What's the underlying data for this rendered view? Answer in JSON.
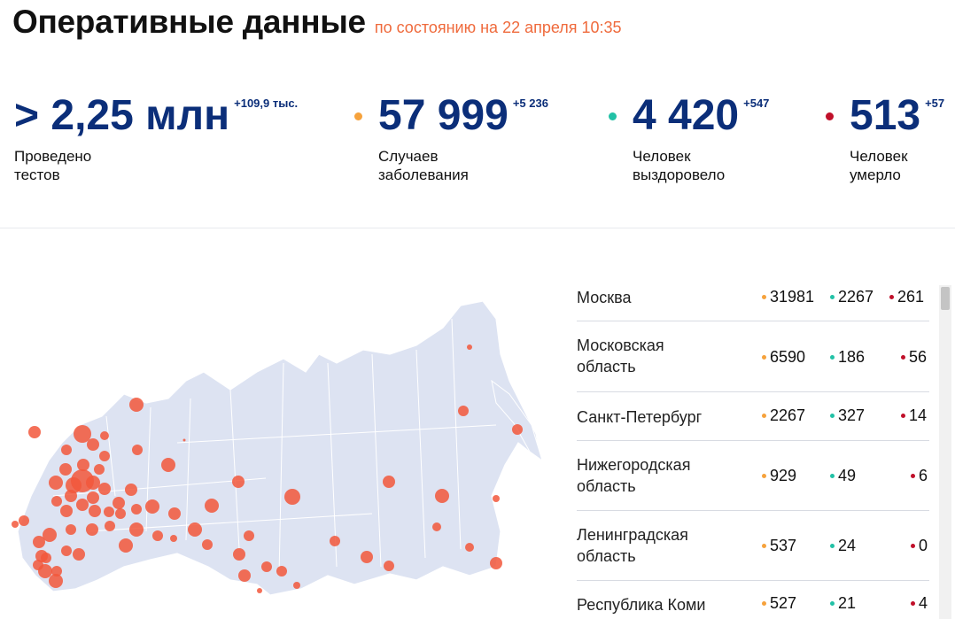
{
  "header": {
    "title": "Оперативные данные",
    "as_of": "по состоянию на 22 апреля 10:35"
  },
  "stats": [
    {
      "value": "> 2,25 млн",
      "delta": "+109,9 тыс.",
      "label_line1": "Проведено",
      "label_line2": "тестов",
      "dot_color": ""
    },
    {
      "value": "57 999",
      "delta": "+5 236",
      "label_line1": "Случаев",
      "label_line2": "заболевания",
      "dot_color": "#f6a23c"
    },
    {
      "value": "4 420",
      "delta": "+547",
      "label_line1": "Человек",
      "label_line2": "выздоровело",
      "dot_color": "#22c1a6"
    },
    {
      "value": "513",
      "delta": "+57",
      "label_line1": "Человек",
      "label_line2": "умерло",
      "dot_color": "#c0102a"
    }
  ],
  "colors": {
    "title_blue": "#0b2e79",
    "accent_orange": "#ef6a3c",
    "cases": "#f6a23c",
    "recovered": "#22c1a6",
    "deaths": "#c0102a",
    "map_land": "#dde3f2",
    "map_bubble": "#f2573b"
  },
  "regions": [
    {
      "name": "Москва",
      "cases": "31981",
      "recovered": "2267",
      "deaths": "261"
    },
    {
      "name": "Московская область",
      "cases": "6590",
      "recovered": "186",
      "deaths": "56"
    },
    {
      "name": "Санкт-Петербург",
      "cases": "2267",
      "recovered": "327",
      "deaths": "14"
    },
    {
      "name": "Нижегородская область",
      "cases": "929",
      "recovered": "49",
      "deaths": "6"
    },
    {
      "name": "Ленинградская область",
      "cases": "537",
      "recovered": "24",
      "deaths": "0"
    },
    {
      "name": "Республика Коми",
      "cases": "527",
      "recovered": "21",
      "deaths": "4"
    }
  ]
}
